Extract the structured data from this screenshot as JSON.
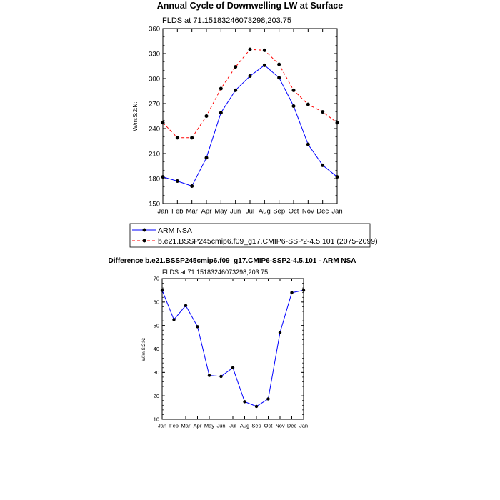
{
  "chart_data": [
    {
      "type": "line",
      "title": "Annual Cycle of Downwelling LW at Surface",
      "subtitle": "FLDS at 71.15183246073298,203.75",
      "ylabel": "W/m:S:2:N:",
      "xlabel": "",
      "categories": [
        "Jan",
        "Feb",
        "Mar",
        "Apr",
        "May",
        "Jun",
        "Jul",
        "Aug",
        "Sep",
        "Oct",
        "Nov",
        "Dec",
        "Jan"
      ],
      "ylim": [
        150,
        360
      ],
      "yticks": [
        150,
        180,
        210,
        240,
        270,
        300,
        330,
        360
      ],
      "grid": false,
      "legend_position": "bottom",
      "series": [
        {
          "name": "ARM NSA",
          "color": "#0000ff",
          "dash": "solid",
          "values": [
            182,
            177,
            171,
            205,
            259,
            286,
            303,
            316,
            301,
            267,
            221,
            196,
            182
          ]
        },
        {
          "name": "b.e21.BSSP245cmip6.f09_g17.CMIP6-SSP2-4.5.101 (2075-2099)",
          "color": "#ff0000",
          "dash": "dashed",
          "values": [
            247,
            229,
            229,
            255,
            288,
            314,
            335,
            334,
            317,
            286,
            269,
            260,
            247
          ]
        }
      ]
    },
    {
      "type": "line",
      "title": "Difference b.e21.BSSP245cmip6.f09_g17.CMIP6-SSP2-4.5.101 - ARM NSA",
      "subtitle": "FLDS at 71.15183246073298,203.75",
      "ylabel": "W/m:S:2:N:",
      "xlabel": "",
      "categories": [
        "Jan",
        "Feb",
        "Mar",
        "Apr",
        "May",
        "Jun",
        "Jul",
        "Aug",
        "Sep",
        "Oct",
        "Nov",
        "Dec",
        "Jan"
      ],
      "ylim": [
        10,
        70
      ],
      "yticks": [
        10,
        20,
        30,
        40,
        50,
        60,
        70
      ],
      "grid": false,
      "series": [
        {
          "color": "#0000ff",
          "dash": "solid",
          "values": [
            65,
            52.5,
            58.5,
            49.5,
            28.7,
            28.3,
            32,
            17.5,
            15.5,
            18.7,
            47,
            64,
            65
          ]
        }
      ]
    }
  ]
}
